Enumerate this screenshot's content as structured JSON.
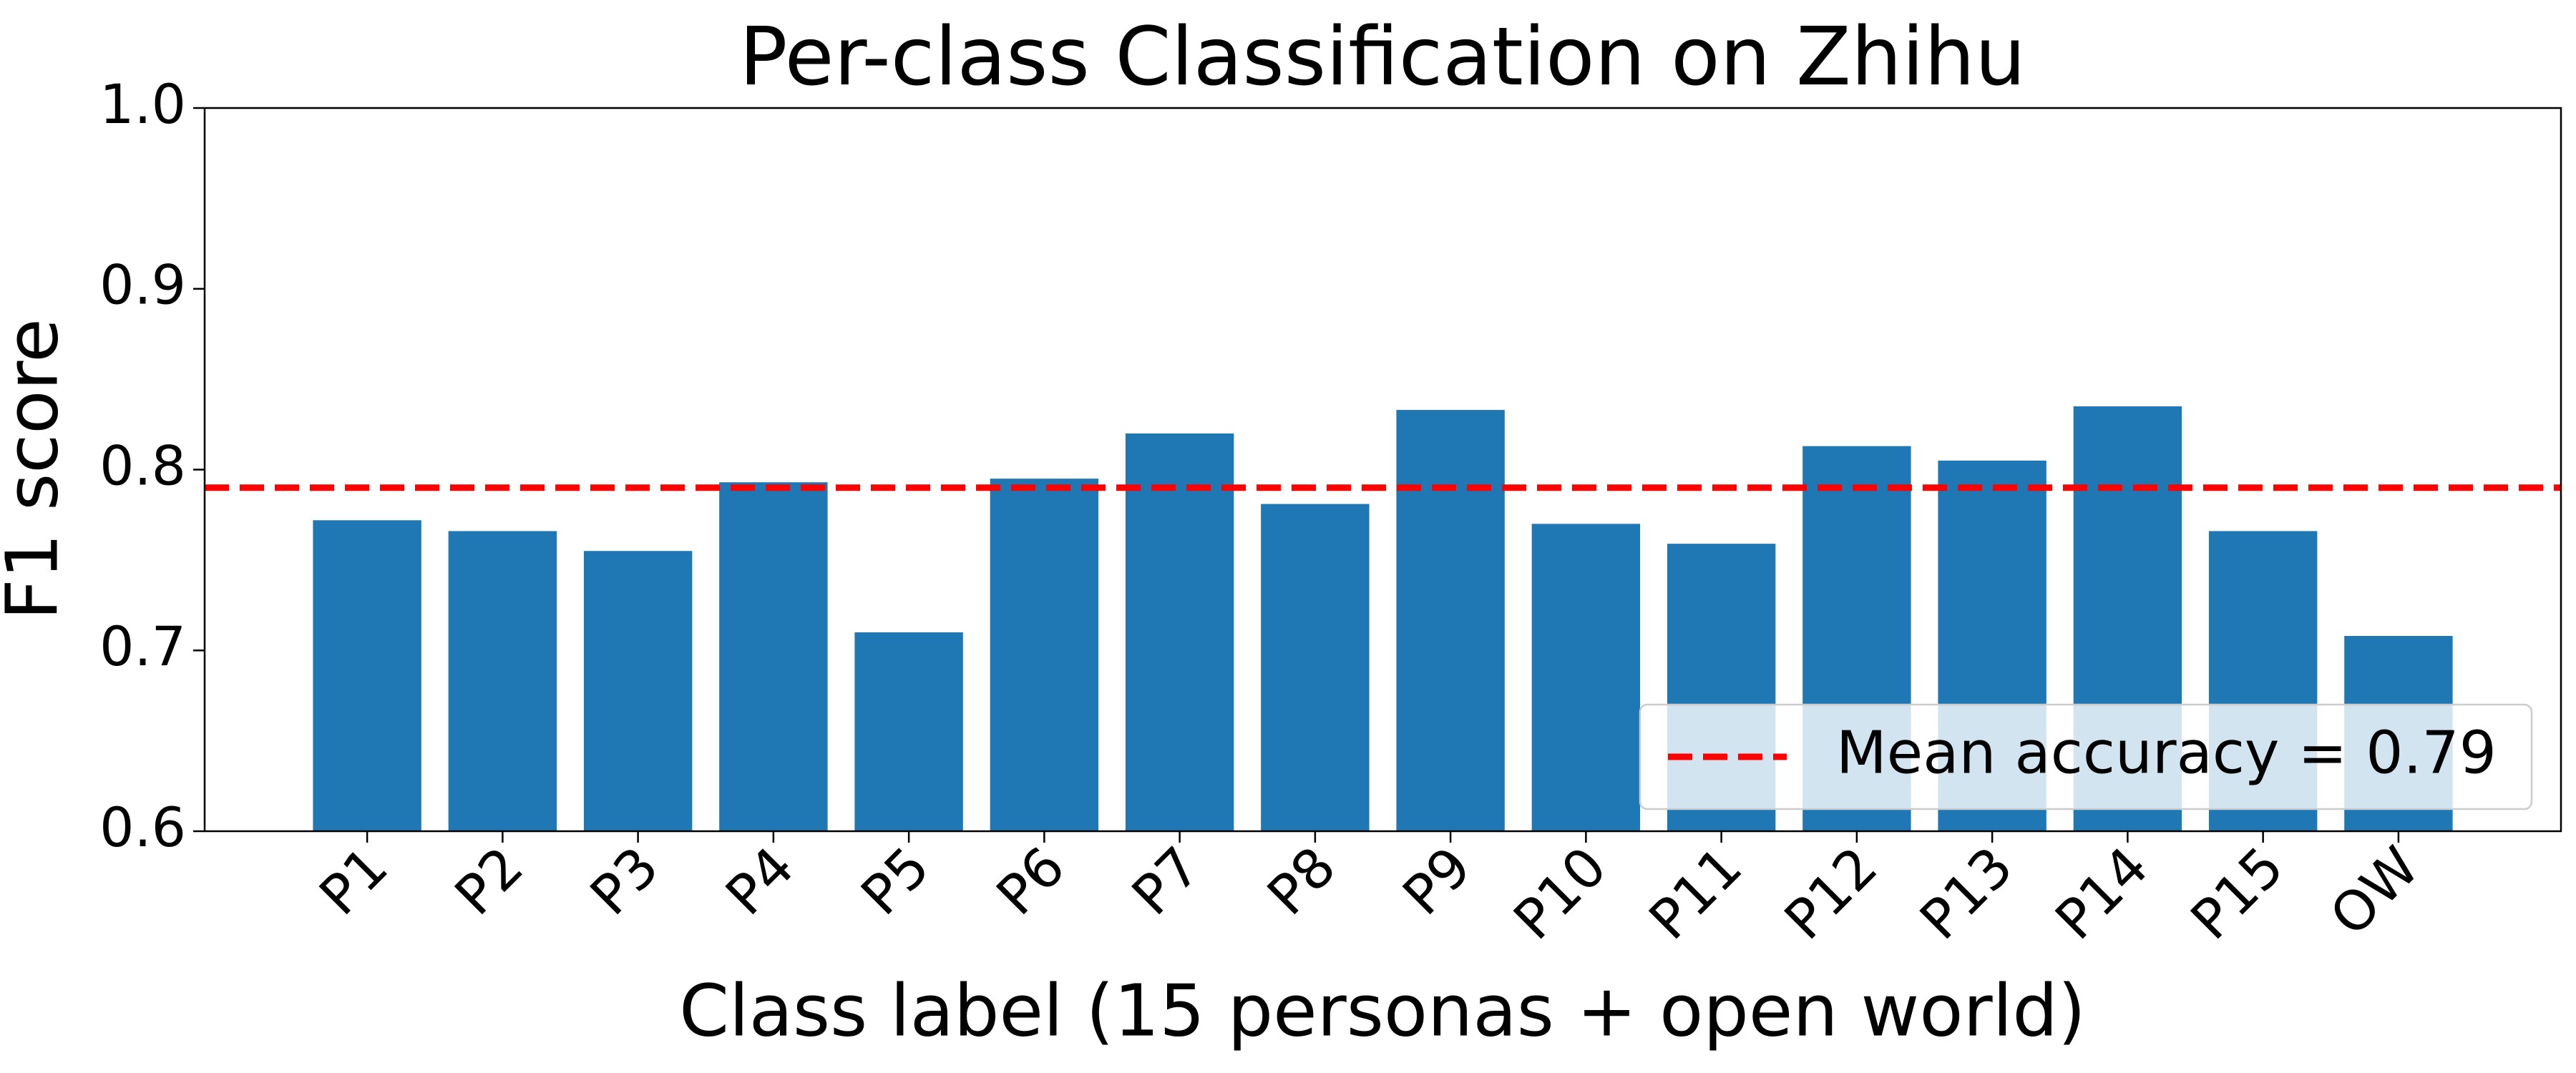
{
  "chart_data": {
    "type": "bar",
    "title": "Per-class Classification on Zhihu",
    "xlabel": "Class label (15 personas + open world)",
    "ylabel": "F1 score",
    "categories": [
      "P1",
      "P2",
      "P3",
      "P4",
      "P5",
      "P6",
      "P7",
      "P8",
      "P9",
      "P10",
      "P11",
      "P12",
      "P13",
      "P14",
      "P15",
      "OW"
    ],
    "values": [
      0.772,
      0.766,
      0.755,
      0.793,
      0.71,
      0.795,
      0.82,
      0.781,
      0.833,
      0.77,
      0.759,
      0.813,
      0.805,
      0.835,
      0.766,
      0.708
    ],
    "color": "#1f77b4",
    "ylim": [
      0.6,
      1.0
    ],
    "yticks": [
      0.6,
      0.7,
      0.8,
      0.9,
      {
        "value": 1.0,
        "label": "1.0"
      }
    ],
    "mean_line": {
      "value": 0.79,
      "label": "Mean accuracy = 0.79",
      "color": "#ff0000"
    },
    "legend": "lower right"
  }
}
